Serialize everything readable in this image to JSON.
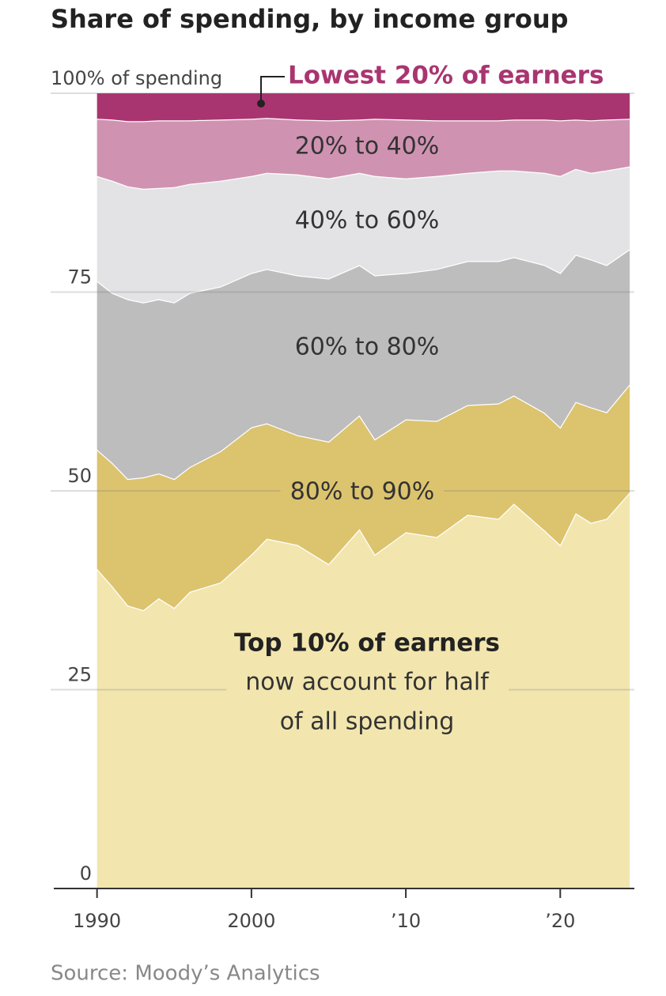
{
  "chart_data": {
    "type": "stacked_area",
    "title": "Share of spending, by income group",
    "x": [
      1990,
      1991,
      1992,
      1993,
      1994,
      1995,
      1996,
      1998,
      2000,
      2001,
      2003,
      2005,
      2007,
      2008,
      2010,
      2012,
      2014,
      2016,
      2017,
      2019,
      2020,
      2021,
      2022,
      2023,
      2024.5
    ],
    "series": [
      {
        "name": "Top 10% of earners",
        "color": "#f2e6ae",
        "values": [
          40.2,
          38.0,
          35.6,
          35.0,
          36.5,
          35.3,
          37.3,
          38.5,
          42.0,
          44.0,
          43.2,
          40.8,
          45.2,
          42.0,
          44.8,
          44.2,
          47.0,
          46.5,
          48.4,
          45.0,
          43.2,
          47.2,
          46.0,
          46.5,
          49.8
        ]
      },
      {
        "name": "80% to 90%",
        "color": "#dcc36e",
        "values": [
          15.0,
          15.5,
          15.9,
          16.7,
          15.7,
          16.2,
          15.7,
          16.5,
          16.0,
          14.5,
          13.8,
          15.4,
          14.3,
          14.5,
          14.2,
          14.6,
          13.8,
          14.5,
          13.6,
          14.8,
          14.8,
          14.0,
          14.5,
          13.4,
          13.6
        ]
      },
      {
        "name": "60% to 80%",
        "color": "#bdbdbe",
        "values": [
          21.2,
          21.4,
          22.6,
          22.0,
          21.9,
          22.2,
          21.9,
          20.7,
          19.4,
          19.4,
          20.1,
          20.5,
          18.9,
          20.6,
          18.4,
          19.1,
          18.1,
          17.9,
          17.4,
          18.6,
          19.4,
          18.5,
          18.6,
          18.5,
          17.0
        ]
      },
      {
        "name": "40% to 60%",
        "color": "#e3e3e5",
        "values": [
          13.2,
          14.1,
          14.2,
          14.3,
          14.0,
          14.5,
          13.7,
          13.3,
          12.2,
          12.1,
          12.7,
          12.6,
          11.6,
          12.5,
          11.9,
          11.7,
          11.1,
          11.4,
          10.9,
          11.6,
          12.2,
          10.8,
          10.9,
          11.9,
          10.4
        ]
      },
      {
        "name": "20% to 40%",
        "color": "#cf93b1",
        "values": [
          7.2,
          7.7,
          8.2,
          8.5,
          8.5,
          8.4,
          8.0,
          7.7,
          7.2,
          6.9,
          6.9,
          7.3,
          6.7,
          7.2,
          7.4,
          7.0,
          6.6,
          6.3,
          6.4,
          6.7,
          7.0,
          6.2,
          6.6,
          6.4,
          6.0
        ]
      },
      {
        "name": "Lowest 20% of earners",
        "color": "#a93570",
        "values": [
          3.2,
          3.3,
          3.5,
          3.5,
          3.4,
          3.4,
          3.4,
          3.3,
          3.2,
          3.1,
          3.3,
          3.4,
          3.3,
          3.2,
          3.3,
          3.4,
          3.4,
          3.4,
          3.3,
          3.3,
          3.4,
          3.3,
          3.4,
          3.3,
          3.2
        ]
      }
    ],
    "annotations": [
      "now account for half",
      "of all spending"
    ],
    "xlim": [
      1987.2,
      2024.8
    ],
    "xticks": [
      1990,
      2000,
      {
        "value": 2010,
        "label": "’10"
      },
      {
        "value": 2020,
        "label": "’20"
      }
    ],
    "ylim": [
      0,
      100
    ],
    "yticks": [
      0,
      25,
      50,
      75,
      {
        "value": 100,
        "label": "100% of spending"
      }
    ],
    "grid": true,
    "source": "Source: Moody’s Analytics"
  }
}
